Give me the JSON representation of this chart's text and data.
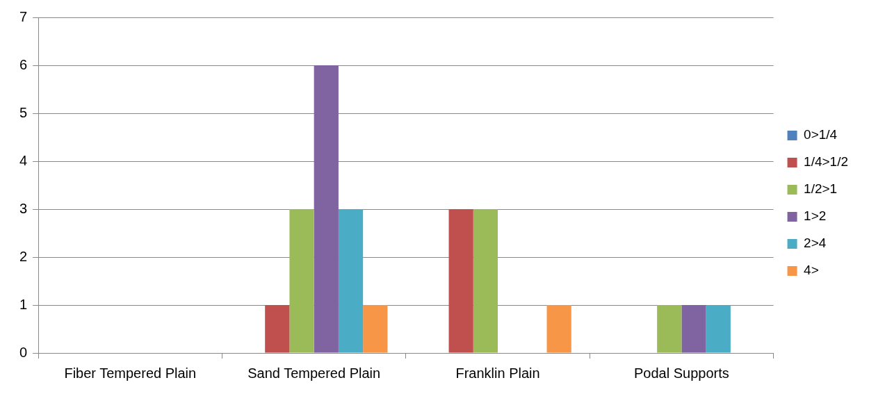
{
  "chart_data": {
    "type": "bar",
    "categories": [
      "Fiber Tempered Plain",
      "Sand Tempered Plain",
      "Franklin Plain",
      "Podal Supports"
    ],
    "series": [
      {
        "name": "0>1/4",
        "color": "#4f81bd",
        "values": [
          0,
          0,
          0,
          0
        ]
      },
      {
        "name": "1/4>1/2",
        "color": "#c0504d",
        "values": [
          0,
          1,
          3,
          0
        ]
      },
      {
        "name": "1/2>1",
        "color": "#9bbb59",
        "values": [
          0,
          3,
          3,
          1
        ]
      },
      {
        "name": "1>2",
        "color": "#8064a2",
        "values": [
          0,
          6,
          0,
          1
        ]
      },
      {
        "name": "2>4",
        "color": "#4bacc6",
        "values": [
          0,
          3,
          0,
          1
        ]
      },
      {
        "name": "4>",
        "color": "#f79646",
        "values": [
          0,
          1,
          1,
          0
        ]
      }
    ],
    "ylim": [
      0,
      7
    ],
    "yticks": [
      0,
      1,
      2,
      3,
      4,
      5,
      6,
      7
    ],
    "grid": "y",
    "legend": "right"
  }
}
